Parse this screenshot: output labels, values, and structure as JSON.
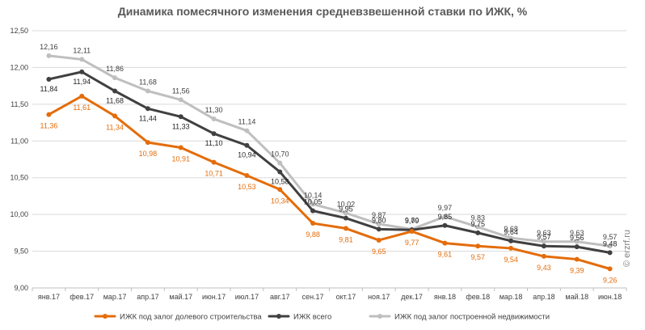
{
  "chart_data": {
    "type": "line",
    "title": "Динамика помесячного изменения средневзвешенной ставки по ИЖК, %",
    "categories": [
      "янв.17",
      "фев.17",
      "мар.17",
      "апр.17",
      "май.17",
      "июн.17",
      "июл.17",
      "авг.17",
      "сен.17",
      "окт.17",
      "ноя.17",
      "дек.17",
      "янв.18",
      "фев.18",
      "мар.18",
      "апр.18",
      "май.18",
      "июн.18"
    ],
    "ylim": [
      9.0,
      12.5
    ],
    "yticks": [
      "9,00",
      "9,50",
      "10,00",
      "10,50",
      "11,00",
      "11,50",
      "12,00",
      "12,50"
    ],
    "grid": true,
    "legend_position": "bottom",
    "series": [
      {
        "name": "ИЖК под залог долевого строительства",
        "color": "#e46c0a",
        "values": [
          11.36,
          11.61,
          11.34,
          10.98,
          10.91,
          10.71,
          10.53,
          10.34,
          9.88,
          9.81,
          9.65,
          9.77,
          9.61,
          9.57,
          9.54,
          9.43,
          9.39,
          9.26
        ],
        "labels": [
          "11,36",
          "11,61",
          "11,34",
          "10,98",
          "10,91",
          "10,71",
          "10,53",
          "10,34",
          "9,88",
          "9,81",
          "9,65",
          "9,77",
          "9,61",
          "9,57",
          "9,54",
          "9,43",
          "9,39",
          "9,26"
        ]
      },
      {
        "name": "ИЖК всего",
        "color": "#404040",
        "values": [
          11.84,
          11.94,
          11.68,
          11.44,
          11.33,
          11.1,
          10.94,
          10.58,
          10.05,
          9.95,
          9.8,
          9.79,
          9.85,
          9.75,
          9.64,
          9.57,
          9.56,
          9.48
        ],
        "labels": [
          "11,84",
          "11,94",
          "11,68",
          "11,44",
          "11,33",
          "11,10",
          "10,94",
          "10,58",
          "10,05",
          "9,95",
          "9,80",
          "9,79",
          "9,85",
          "9,75",
          "9,64",
          "9,57",
          "9,56",
          "9,48"
        ]
      },
      {
        "name": "ИЖК под залог построенной недвижимости",
        "color": "#bfbfbf",
        "values": [
          12.16,
          12.11,
          11.86,
          11.68,
          11.56,
          11.3,
          11.14,
          10.7,
          10.14,
          10.02,
          9.87,
          9.8,
          9.97,
          9.83,
          9.68,
          9.63,
          9.63,
          9.57
        ],
        "labels": [
          "12,16",
          "12,11",
          "11,86",
          "11,68",
          "11,56",
          "11,30",
          "11,14",
          "10,70",
          "10,14",
          "10,02",
          "9,87",
          "9,80",
          "9,97",
          "9,83",
          "9,68",
          "9,63",
          "9,63",
          "9,57"
        ]
      }
    ]
  },
  "watermark": "© erzrf.ru"
}
